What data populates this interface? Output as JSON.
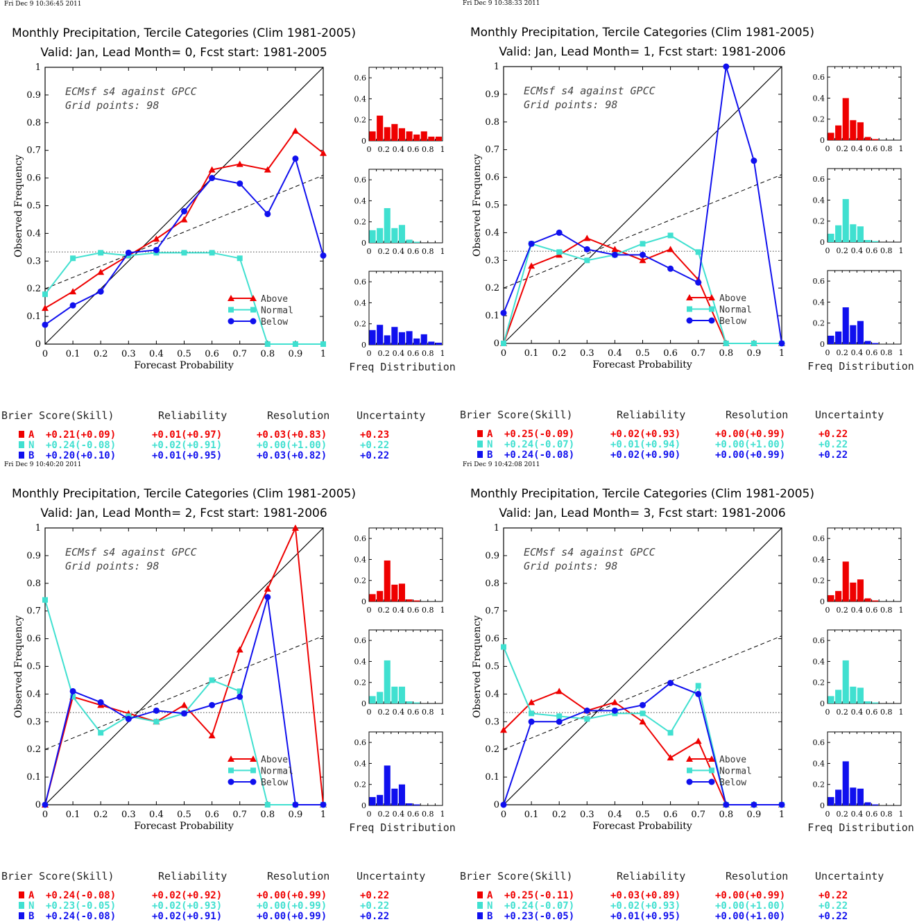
{
  "colors": {
    "A": "#ee0000",
    "N": "#40e0d0",
    "B": "#1010ee"
  },
  "headers": [
    "Brier Score(Skill)",
    "Reliability",
    "Resolution",
    "Uncertainty"
  ],
  "legend": [
    "Above",
    "Normal",
    "Below"
  ],
  "chart_data": [
    {
      "type": "line",
      "timestamp": "Fri Dec  9 10:36:45 2011",
      "title": "Monthly Precipitation, Tercile Categories (Clim 1981-2005)",
      "subtitle": "Valid: Jan, Lead Month= 0, Fcst start: 1981-2005",
      "annotation": [
        "ECMsf s4 against GPCC",
        "Grid points:    98"
      ],
      "xlabel": "Forecast Probability",
      "ylabel": "Observed Frequency",
      "hist_xlabel": "Freq Distribution",
      "xlim": [
        0,
        1
      ],
      "ylim": [
        0,
        1
      ],
      "hist_ylim": [
        0,
        0.7
      ],
      "x": [
        0,
        0.1,
        0.2,
        0.3,
        0.4,
        0.5,
        0.6,
        0.7,
        0.8,
        0.9,
        1
      ],
      "series": [
        {
          "key": "A",
          "name": "Above",
          "values": [
            0.13,
            0.19,
            0.26,
            0.32,
            0.38,
            0.45,
            0.63,
            0.65,
            0.63,
            0.77,
            0.69
          ]
        },
        {
          "key": "N",
          "name": "Normal",
          "values": [
            0.18,
            0.31,
            0.33,
            0.32,
            0.33,
            0.33,
            0.33,
            0.31,
            0,
            0,
            0
          ]
        },
        {
          "key": "B",
          "name": "Below",
          "values": [
            0.07,
            0.14,
            0.19,
            0.33,
            0.34,
            0.48,
            0.6,
            0.58,
            0.47,
            0.67,
            0.32
          ]
        }
      ],
      "hist": {
        "A": [
          0.09,
          0.24,
          0.13,
          0.16,
          0.12,
          0.09,
          0.06,
          0.09,
          0.04,
          0.04
        ],
        "N": [
          0.12,
          0.14,
          0.33,
          0.14,
          0.17,
          0.03,
          0.01,
          0,
          0,
          0
        ],
        "B": [
          0.14,
          0.19,
          0.09,
          0.17,
          0.12,
          0.13,
          0.06,
          0.1,
          0.03,
          0.02
        ]
      },
      "scores": [
        {
          "key": "A",
          "label": "A",
          "brier": "+0.21(+0.09)",
          "reliability": "+0.01(+0.97)",
          "resolution": "+0.03(+0.83)",
          "uncertainty": "+0.23"
        },
        {
          "key": "N",
          "label": "N",
          "brier": "+0.24(-0.08)",
          "reliability": "+0.02(+0.91)",
          "resolution": "+0.00(+1.00)",
          "uncertainty": "+0.22"
        },
        {
          "key": "B",
          "label": "B",
          "brier": "+0.20(+0.10)",
          "reliability": "+0.01(+0.95)",
          "resolution": "+0.03(+0.82)",
          "uncertainty": "+0.22"
        }
      ]
    },
    {
      "type": "line",
      "timestamp": "Fri Dec  9 10:38:33 2011",
      "title": "Monthly Precipitation, Tercile Categories (Clim 1981-2005)",
      "subtitle": "Valid: Jan, Lead Month= 1, Fcst start: 1981-2006",
      "annotation": [
        "ECMsf s4 against GPCC",
        "Grid points:    98"
      ],
      "xlabel": "Forecast Probability",
      "ylabel": "Observed Frequency",
      "hist_xlabel": "Freq Distribution",
      "xlim": [
        0,
        1
      ],
      "ylim": [
        0,
        1
      ],
      "hist_ylim": [
        0,
        0.7
      ],
      "x": [
        0,
        0.1,
        0.2,
        0.3,
        0.4,
        0.5,
        0.6,
        0.7,
        0.8,
        0.9,
        1
      ],
      "series": [
        {
          "key": "A",
          "name": "Above",
          "values": [
            0,
            0.28,
            0.32,
            0.38,
            0.34,
            0.3,
            0.34,
            0.23,
            0,
            0,
            0
          ]
        },
        {
          "key": "N",
          "name": "Normal",
          "values": [
            0,
            0.36,
            0.33,
            0.3,
            0.32,
            0.36,
            0.39,
            0.33,
            0,
            0,
            0
          ]
        },
        {
          "key": "B",
          "name": "Below",
          "values": [
            0.11,
            0.36,
            0.4,
            0.34,
            0.32,
            0.32,
            0.27,
            0.22,
            1.0,
            0.66,
            0
          ]
        }
      ],
      "hist": {
        "A": [
          0.07,
          0.14,
          0.4,
          0.19,
          0.17,
          0.03,
          0.01,
          0,
          0,
          0
        ],
        "N": [
          0.08,
          0.16,
          0.41,
          0.17,
          0.15,
          0.02,
          0.01,
          0,
          0,
          0
        ],
        "B": [
          0.08,
          0.12,
          0.35,
          0.18,
          0.22,
          0.03,
          0.01,
          0,
          0,
          0
        ]
      },
      "scores": [
        {
          "key": "A",
          "label": "A",
          "brier": "+0.25(-0.09)",
          "reliability": "+0.02(+0.93)",
          "resolution": "+0.00(+0.99)",
          "uncertainty": "+0.22"
        },
        {
          "key": "N",
          "label": "N",
          "brier": "+0.24(-0.07)",
          "reliability": "+0.01(+0.94)",
          "resolution": "+0.00(+1.00)",
          "uncertainty": "+0.22"
        },
        {
          "key": "B",
          "label": "B",
          "brier": "+0.24(-0.08)",
          "reliability": "+0.02(+0.90)",
          "resolution": "+0.00(+0.99)",
          "uncertainty": "+0.22"
        }
      ]
    },
    {
      "type": "line",
      "timestamp": "Fri Dec  9 10:40:20 2011",
      "title": "Monthly Precipitation, Tercile Categories (Clim 1981-2005)",
      "subtitle": "Valid: Jan, Lead Month= 2, Fcst start: 1981-2006",
      "annotation": [
        "ECMsf s4 against GPCC",
        "Grid points:    98"
      ],
      "xlabel": "Forecast Probability",
      "ylabel": "Observed Frequency",
      "hist_xlabel": "Freq Distribution",
      "xlim": [
        0,
        1
      ],
      "ylim": [
        0,
        1
      ],
      "hist_ylim": [
        0,
        0.7
      ],
      "x": [
        0,
        0.1,
        0.2,
        0.3,
        0.4,
        0.5,
        0.6,
        0.7,
        0.8,
        0.9,
        1
      ],
      "series": [
        {
          "key": "A",
          "name": "Above",
          "values": [
            0,
            0.39,
            0.36,
            0.33,
            0.3,
            0.36,
            0.25,
            0.56,
            0.78,
            1.0,
            0
          ]
        },
        {
          "key": "N",
          "name": "Normal",
          "values": [
            0.74,
            0.39,
            0.26,
            0.32,
            0.3,
            0.33,
            0.45,
            0.41,
            0,
            0,
            0
          ]
        },
        {
          "key": "B",
          "name": "Below",
          "values": [
            0,
            0.41,
            0.37,
            0.31,
            0.34,
            0.33,
            0.36,
            0.39,
            0.75,
            0,
            0
          ]
        }
      ],
      "hist": {
        "A": [
          0.07,
          0.1,
          0.39,
          0.16,
          0.17,
          0.02,
          0.01,
          0,
          0,
          0
        ],
        "N": [
          0.07,
          0.11,
          0.41,
          0.16,
          0.16,
          0.02,
          0.01,
          0,
          0,
          0
        ],
        "B": [
          0.08,
          0.1,
          0.38,
          0.16,
          0.2,
          0.02,
          0.01,
          0,
          0,
          0
        ]
      },
      "scores": [
        {
          "key": "A",
          "label": "A",
          "brier": "+0.24(-0.08)",
          "reliability": "+0.02(+0.92)",
          "resolution": "+0.00(+0.99)",
          "uncertainty": "+0.22"
        },
        {
          "key": "N",
          "label": "N",
          "brier": "+0.23(-0.05)",
          "reliability": "+0.02(+0.93)",
          "resolution": "+0.00(+0.99)",
          "uncertainty": "+0.22"
        },
        {
          "key": "B",
          "label": "B",
          "brier": "+0.24(-0.08)",
          "reliability": "+0.02(+0.91)",
          "resolution": "+0.00(+0.99)",
          "uncertainty": "+0.22"
        }
      ]
    },
    {
      "type": "line",
      "timestamp": "Fri Dec  9 10:42:08 2011",
      "title": "Monthly Precipitation, Tercile Categories (Clim 1981-2005)",
      "subtitle": "Valid: Jan, Lead Month= 3, Fcst start: 1981-2006",
      "annotation": [
        "ECMsf s4 against GPCC",
        "Grid points:    98"
      ],
      "xlabel": "Forecast Probability",
      "ylabel": "Observed Frequency",
      "hist_xlabel": "Freq Distribution",
      "xlim": [
        0,
        1
      ],
      "ylim": [
        0,
        1
      ],
      "hist_ylim": [
        0,
        0.7
      ],
      "x": [
        0,
        0.1,
        0.2,
        0.3,
        0.4,
        0.5,
        0.6,
        0.7,
        0.8,
        0.9,
        1
      ],
      "series": [
        {
          "key": "A",
          "name": "Above",
          "values": [
            0.27,
            0.37,
            0.41,
            0.34,
            0.37,
            0.3,
            0.17,
            0.23,
            0,
            0,
            0
          ]
        },
        {
          "key": "N",
          "name": "Normal",
          "values": [
            0.57,
            0.33,
            0.32,
            0.31,
            0.33,
            0.33,
            0.26,
            0.43,
            0,
            0,
            0
          ]
        },
        {
          "key": "B",
          "name": "Below",
          "values": [
            0,
            0.3,
            0.3,
            0.34,
            0.34,
            0.36,
            0.44,
            0.4,
            0,
            0,
            0
          ]
        }
      ],
      "hist": {
        "A": [
          0.06,
          0.1,
          0.38,
          0.18,
          0.21,
          0.03,
          0.01,
          0,
          0,
          0
        ],
        "N": [
          0.07,
          0.13,
          0.41,
          0.16,
          0.15,
          0.02,
          0.01,
          0,
          0,
          0
        ],
        "B": [
          0.08,
          0.15,
          0.42,
          0.17,
          0.16,
          0.03,
          0.01,
          0,
          0,
          0
        ]
      },
      "scores": [
        {
          "key": "A",
          "label": "A",
          "brier": "+0.25(-0.11)",
          "reliability": "+0.03(+0.89)",
          "resolution": "+0.00(+0.99)",
          "uncertainty": "+0.22"
        },
        {
          "key": "N",
          "label": "N",
          "brier": "+0.24(-0.07)",
          "reliability": "+0.02(+0.93)",
          "resolution": "+0.00(+1.00)",
          "uncertainty": "+0.22"
        },
        {
          "key": "B",
          "label": "B",
          "brier": "+0.23(-0.05)",
          "reliability": "+0.01(+0.95)",
          "resolution": "+0.00(+1.00)",
          "uncertainty": "+0.22"
        }
      ]
    }
  ]
}
